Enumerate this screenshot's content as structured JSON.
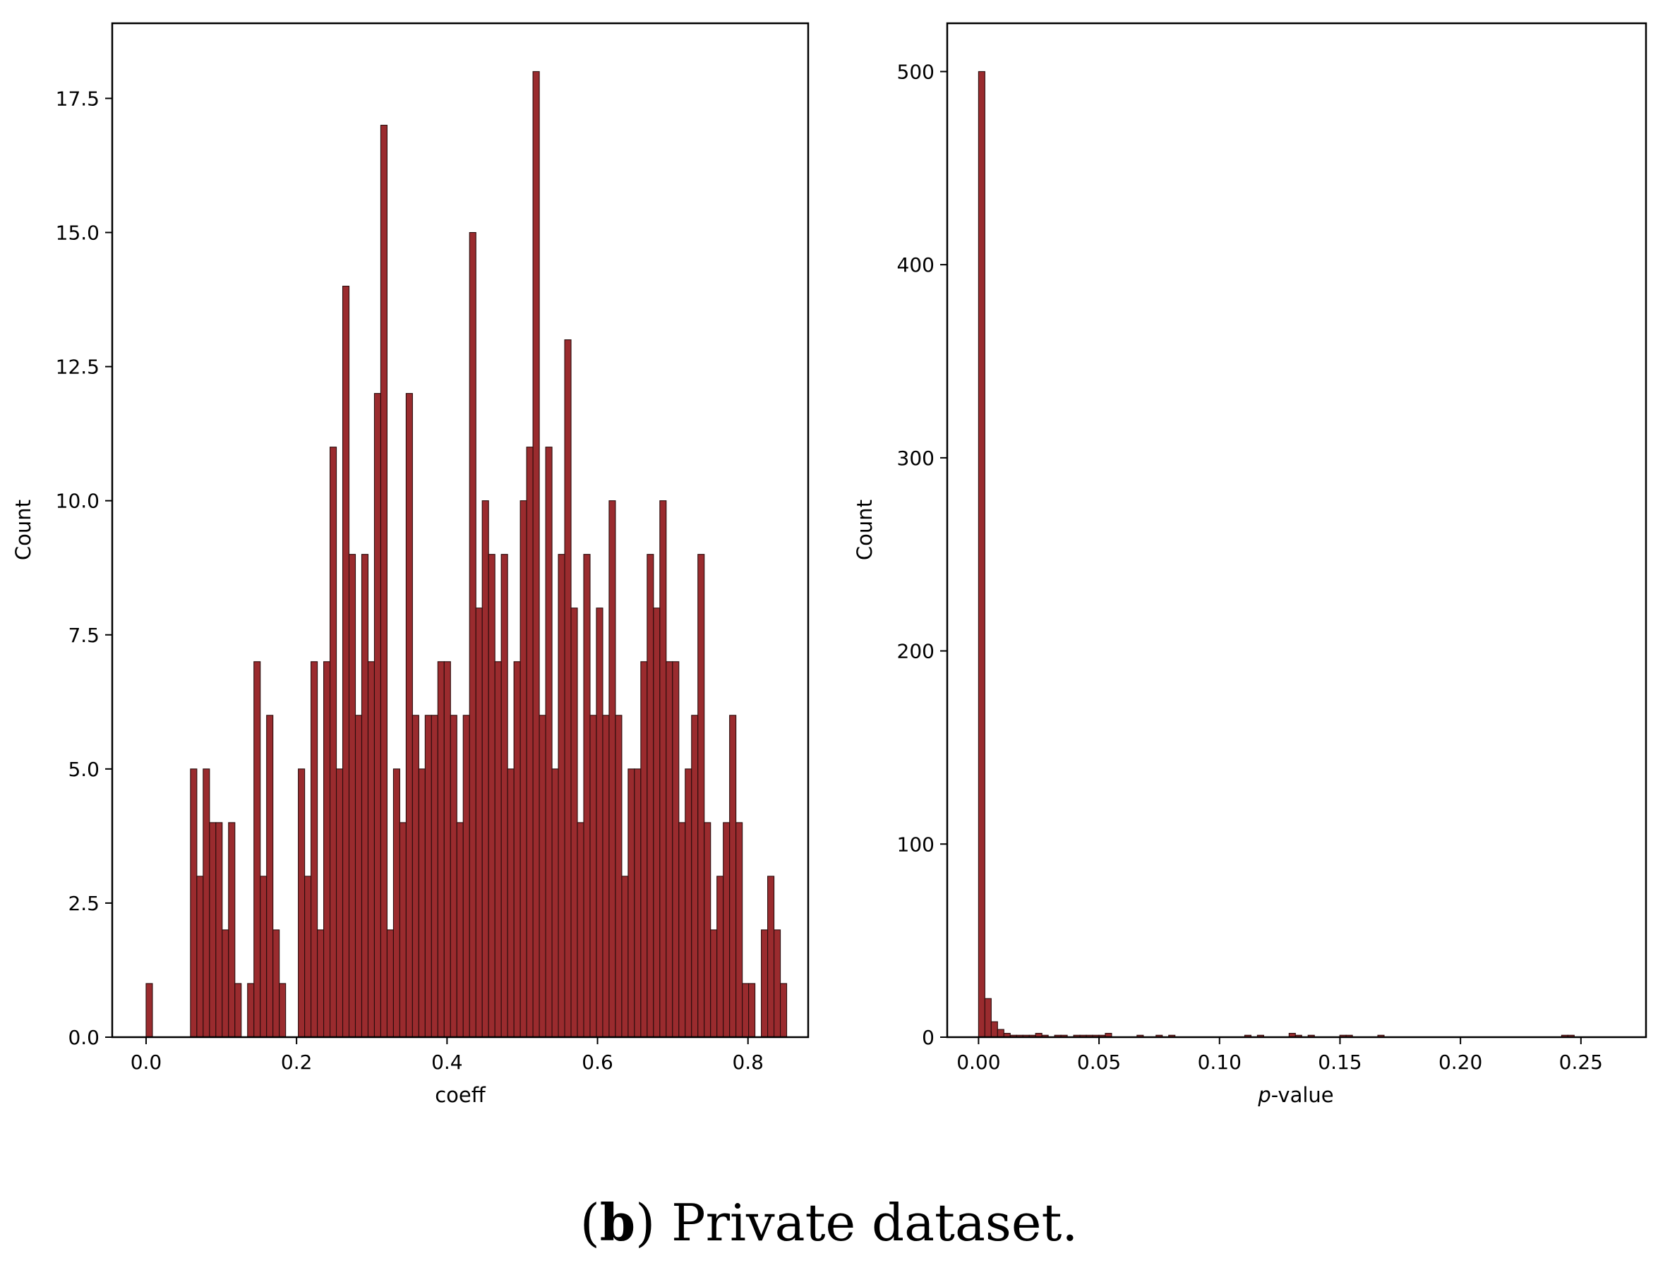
{
  "chart_data": [
    {
      "type": "bar",
      "title": "",
      "xlabel": "coeff",
      "ylabel": "Count",
      "xlim": [
        -0.045,
        0.88
      ],
      "ylim": [
        0,
        18.9
      ],
      "xticks": [
        0.0,
        0.2,
        0.4,
        0.6,
        0.8
      ],
      "xtick_labels": [
        "0.0",
        "0.2",
        "0.4",
        "0.6",
        "0.8"
      ],
      "yticks": [
        0.0,
        2.5,
        5.0,
        7.5,
        10.0,
        12.5,
        15.0,
        17.5
      ],
      "ytick_labels": [
        "0.0",
        "2.5",
        "5.0",
        "7.5",
        "10.0",
        "12.5",
        "15.0",
        "17.5"
      ],
      "bin_start": 0.0,
      "bin_width": 0.00843,
      "values": [
        1,
        0,
        0,
        0,
        0,
        0,
        0,
        5,
        3,
        5,
        4,
        4,
        2,
        4,
        1,
        0,
        1,
        7,
        3,
        6,
        2,
        1,
        0,
        0,
        5,
        3,
        7,
        2,
        7,
        11,
        5,
        14,
        9,
        6,
        9,
        7,
        12,
        17,
        2,
        5,
        4,
        12,
        6,
        5,
        6,
        6,
        7,
        7,
        6,
        4,
        6,
        15,
        8,
        10,
        9,
        7,
        9,
        5,
        7,
        10,
        11,
        18,
        6,
        11,
        5,
        9,
        13,
        8,
        4,
        9,
        6,
        8,
        6,
        10,
        6,
        3,
        5,
        5,
        7,
        9,
        8,
        10,
        7,
        7,
        4,
        5,
        6,
        9,
        4,
        2,
        3,
        4,
        6,
        4,
        1,
        1,
        0,
        2,
        3,
        2,
        1
      ],
      "grid": false,
      "bar_color": "#9a2b2e"
    },
    {
      "type": "bar",
      "title": "",
      "xlabel": "-value",
      "xlabel_italic_prefix": "p",
      "ylabel": "Count",
      "xlim": [
        -0.013,
        0.277
      ],
      "ylim": [
        0,
        525
      ],
      "xticks": [
        0.0,
        0.05,
        0.1,
        0.15,
        0.2,
        0.25
      ],
      "xtick_labels": [
        "0.00",
        "0.05",
        "0.10",
        "0.15",
        "0.20",
        "0.25"
      ],
      "yticks": [
        0,
        100,
        200,
        300,
        400,
        500
      ],
      "ytick_labels": [
        "0",
        "100",
        "200",
        "300",
        "400",
        "500"
      ],
      "bin_start": 0.0,
      "bin_width": 0.00263,
      "values": [
        500,
        20,
        8,
        4,
        2,
        1,
        1,
        1,
        1,
        2,
        1,
        0,
        1,
        1,
        0,
        1,
        1,
        1,
        1,
        1,
        2,
        0,
        0,
        0,
        0,
        1,
        0,
        0,
        1,
        0,
        1,
        0,
        0,
        0,
        0,
        0,
        0,
        0,
        0,
        0,
        0,
        0,
        1,
        0,
        1,
        0,
        0,
        0,
        0,
        2,
        1,
        0,
        1,
        0,
        0,
        0,
        0,
        1,
        1,
        0,
        0,
        0,
        0,
        1,
        0,
        0,
        0,
        0,
        0,
        0,
        0,
        0,
        0,
        0,
        0,
        0,
        0,
        0,
        0,
        0,
        0,
        0,
        0,
        0,
        0,
        0,
        0,
        0,
        0,
        0,
        0,
        0,
        1,
        1,
        0,
        0,
        0,
        0,
        0,
        0
      ],
      "grid": false,
      "bar_color": "#9a2b2e"
    }
  ],
  "caption": {
    "open_paren": "(",
    "letter": "b",
    "rest": ") Private dataset."
  }
}
